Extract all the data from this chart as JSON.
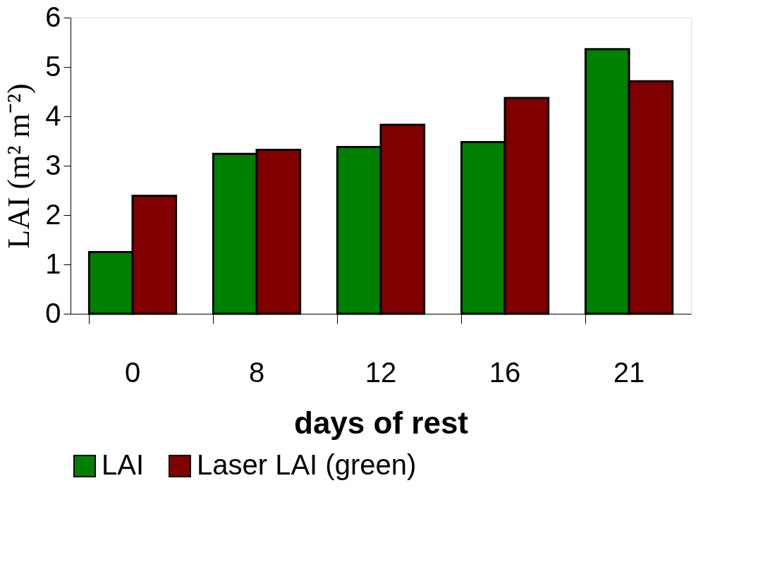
{
  "chart_data": {
    "type": "bar",
    "xlabel": "days of rest",
    "ylabel": "LAI (m² m⁻²)",
    "categories": [
      "0",
      "8",
      "12",
      "16",
      "21"
    ],
    "series": [
      {
        "name": "LAI",
        "color": "#008000",
        "values": [
          1.25,
          3.24,
          3.38,
          3.48,
          5.36
        ]
      },
      {
        "name": "Laser LAI (green)",
        "color": "#800000",
        "values": [
          2.39,
          3.32,
          3.83,
          4.37,
          4.71
        ]
      }
    ],
    "ylim": [
      0,
      6
    ],
    "yticks": [
      0,
      1,
      2,
      3,
      4,
      5,
      6
    ],
    "grid": false,
    "legend": "bottom"
  }
}
